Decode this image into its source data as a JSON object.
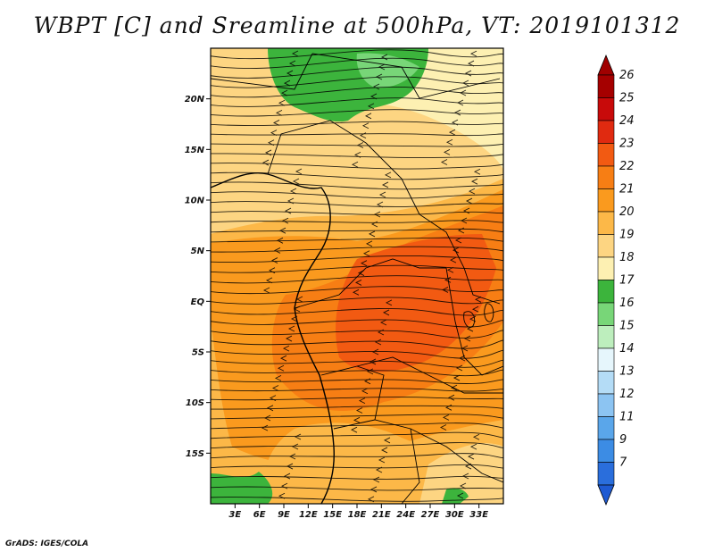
{
  "title": "WBPT [C] and Sreamline at 500hPa, VT: 2019101312",
  "credit": "GrADS: IGES/COLA",
  "map": {
    "lon_range": [
      0,
      36
    ],
    "lat_range": [
      -20,
      25
    ],
    "lon_ticks": [
      {
        "value": 3,
        "label": "3E"
      },
      {
        "value": 6,
        "label": "6E"
      },
      {
        "value": 9,
        "label": "9E"
      },
      {
        "value": 12,
        "label": "12E"
      },
      {
        "value": 15,
        "label": "15E"
      },
      {
        "value": 18,
        "label": "18E"
      },
      {
        "value": 21,
        "label": "21E"
      },
      {
        "value": 24,
        "label": "24E"
      },
      {
        "value": 27,
        "label": "27E"
      },
      {
        "value": 30,
        "label": "30E"
      },
      {
        "value": 33,
        "label": "33E"
      }
    ],
    "lat_ticks": [
      {
        "value": 20,
        "label": "20N"
      },
      {
        "value": 15,
        "label": "15N"
      },
      {
        "value": 10,
        "label": "10N"
      },
      {
        "value": 5,
        "label": "5N"
      },
      {
        "value": 0,
        "label": "EQ"
      },
      {
        "value": -5,
        "label": "5S"
      },
      {
        "value": -10,
        "label": "10S"
      },
      {
        "value": -15,
        "label": "15S"
      }
    ]
  },
  "colorbar": {
    "levels": [
      {
        "label": "26",
        "color": "#a50000"
      },
      {
        "label": "25",
        "color": "#c80a0a"
      },
      {
        "label": "24",
        "color": "#e02a10"
      },
      {
        "label": "23",
        "color": "#f25a12"
      },
      {
        "label": "22",
        "color": "#f77e14"
      },
      {
        "label": "21",
        "color": "#fa9a1e"
      },
      {
        "label": "20",
        "color": "#fcb848"
      },
      {
        "label": "19",
        "color": "#fdd582"
      },
      {
        "label": "18",
        "color": "#fdf0b2"
      },
      {
        "label": "17",
        "color": "#3cb43c"
      },
      {
        "label": "16",
        "color": "#78d678"
      },
      {
        "label": "15",
        "color": "#bdeebd"
      },
      {
        "label": "14",
        "color": "#e6f6fc"
      },
      {
        "label": "13",
        "color": "#b4dcf6"
      },
      {
        "label": "12",
        "color": "#8cc4f2"
      },
      {
        "label": "11",
        "color": "#5aa6ea"
      },
      {
        "label": "9",
        "color": "#3c8ce4"
      },
      {
        "label": "7",
        "color": "#2a6edc"
      }
    ],
    "top_arrow_color": "#a00000",
    "bottom_arrow_color": "#1e5ad2"
  }
}
